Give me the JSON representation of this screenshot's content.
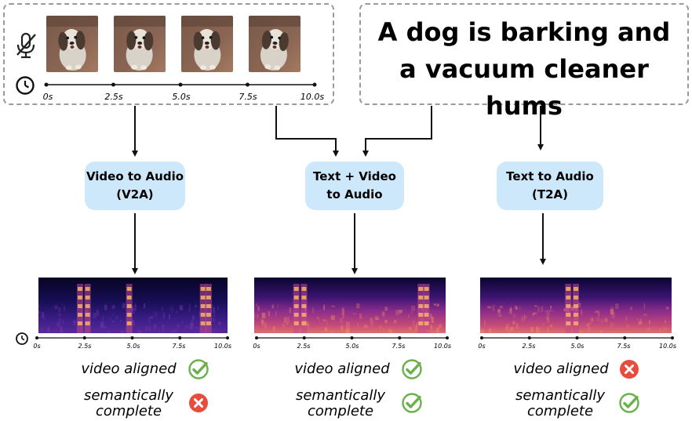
{
  "caption": "A dog is barking and\na vacuum cleaner hums",
  "video_timeline": {
    "ticks": [
      "0s",
      "2.5s",
      "5.0s",
      "7.5s",
      "10.0s"
    ],
    "icons": [
      "muted-microphone-icon",
      "clock-icon"
    ]
  },
  "models": [
    {
      "label": "Video to Audio\n(V2A)"
    },
    {
      "label": "Text + Video\nto Audio"
    },
    {
      "label": "Text to Audio\n(T2A)"
    }
  ],
  "spectrogram_ticks": [
    "0s",
    "2.5s",
    "5.0s",
    "7.5s",
    "10.0s"
  ],
  "evaluation": {
    "video_aligned_label": "video aligned",
    "semantic_label": "semantically\ncomplete",
    "results": [
      {
        "video_aligned": true,
        "semantically_complete": false
      },
      {
        "video_aligned": true,
        "semantically_complete": true
      },
      {
        "video_aligned": false,
        "semantically_complete": true
      }
    ]
  },
  "colors": {
    "model_box": "#cde8fa",
    "check": "#6ab04c",
    "cross": "#e74c3c",
    "dashed_border": "#9a9a9a"
  }
}
